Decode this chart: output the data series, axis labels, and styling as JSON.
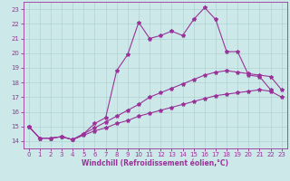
{
  "xlabel": "Windchill (Refroidissement éolien,°C)",
  "bg_color": "#cce8e8",
  "line_color": "#993399",
  "xlim": [
    -0.5,
    23.5
  ],
  "ylim": [
    13.5,
    23.5
  ],
  "yticks": [
    14,
    15,
    16,
    17,
    18,
    19,
    20,
    21,
    22,
    23
  ],
  "xticks": [
    0,
    1,
    2,
    3,
    4,
    5,
    6,
    7,
    8,
    9,
    10,
    11,
    12,
    13,
    14,
    15,
    16,
    17,
    18,
    19,
    20,
    21,
    22,
    23
  ],
  "series1_x": [
    0,
    1,
    2,
    3,
    4,
    5,
    6,
    7,
    8,
    9,
    10,
    11,
    12,
    13,
    14,
    15,
    16,
    17,
    18,
    19,
    20,
    21,
    22
  ],
  "series1_y": [
    15.0,
    14.2,
    14.2,
    14.3,
    14.1,
    14.5,
    15.2,
    15.6,
    18.8,
    19.9,
    22.1,
    21.0,
    21.2,
    21.5,
    21.2,
    22.3,
    23.1,
    22.3,
    20.1,
    20.1,
    18.5,
    18.4,
    17.5
  ],
  "series2_x": [
    0,
    1,
    2,
    3,
    4,
    5,
    6,
    7,
    8,
    9,
    10,
    11,
    12,
    13,
    14,
    15,
    16,
    17,
    18,
    19,
    20,
    21,
    22,
    23
  ],
  "series2_y": [
    15.0,
    14.2,
    14.2,
    14.3,
    14.1,
    14.5,
    14.9,
    15.3,
    15.7,
    16.1,
    16.5,
    17.0,
    17.3,
    17.6,
    17.9,
    18.2,
    18.5,
    18.7,
    18.8,
    18.7,
    18.6,
    18.5,
    18.4,
    17.5
  ],
  "series3_x": [
    0,
    1,
    2,
    3,
    4,
    5,
    6,
    7,
    8,
    9,
    10,
    11,
    12,
    13,
    14,
    15,
    16,
    17,
    18,
    19,
    20,
    21,
    22,
    23
  ],
  "series3_y": [
    15.0,
    14.2,
    14.2,
    14.3,
    14.1,
    14.4,
    14.7,
    14.9,
    15.2,
    15.4,
    15.7,
    15.9,
    16.1,
    16.3,
    16.5,
    16.7,
    16.9,
    17.1,
    17.2,
    17.3,
    17.4,
    17.5,
    17.4,
    17.0
  ],
  "tick_fontsize": 5.0,
  "xlabel_fontsize": 5.5
}
